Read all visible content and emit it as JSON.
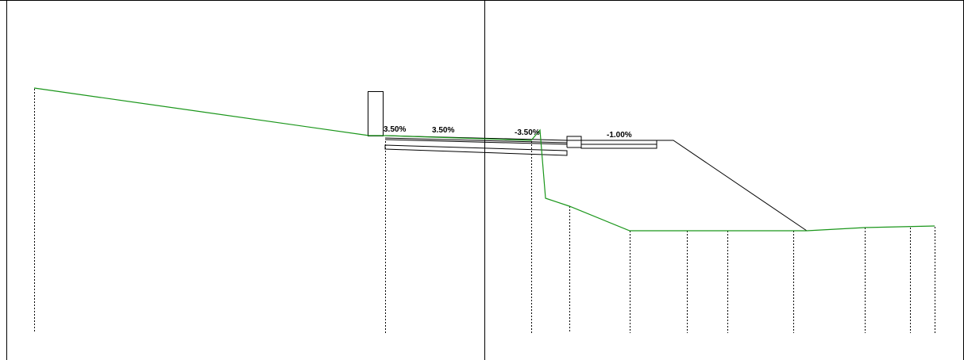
{
  "colors": {
    "background": "#ffffff",
    "frame": "#000000",
    "design_section": "#000000",
    "existing_ground": "#1a961a",
    "station_lines": "#000000"
  },
  "slope_labels": {
    "left_curb_slope": "3.50%",
    "left_lane_slope": "3.50%",
    "right_lane_slope": "-3.50%",
    "right_shoulder_slope": "-1.00%"
  }
}
